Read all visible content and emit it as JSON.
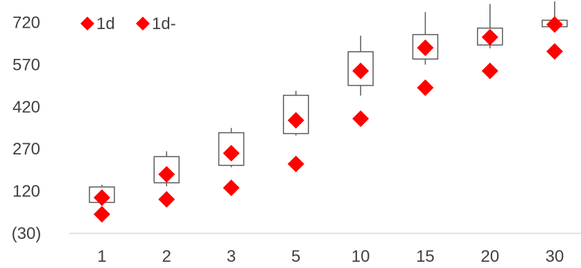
{
  "chart_data": {
    "type": "boxplot",
    "categories": [
      "1",
      "2",
      "3",
      "5",
      "10",
      "15",
      "20",
      "30"
    ],
    "y_ticks": [
      -30,
      120,
      270,
      420,
      570,
      720
    ],
    "y_tick_labels": [
      "(30)",
      "120",
      "270",
      "420",
      "570",
      "720"
    ],
    "ylim": [
      -30,
      800
    ],
    "grid": false,
    "legend_position": "top-left",
    "box_color": "#595959",
    "axis_color": "#d9d9d9",
    "series": [
      {
        "name": "1d",
        "color": "#ff0000",
        "values": [
          97,
          180,
          255,
          372,
          548,
          630,
          668,
          713
        ]
      },
      {
        "name": "1d-",
        "color": "#ff0000",
        "values": [
          38,
          91,
          132,
          217,
          378,
          488,
          548,
          617
        ]
      }
    ],
    "boxes": [
      {
        "whisker_low": 68,
        "q1": 80,
        "q3": 135,
        "whisker_high": 143
      },
      {
        "whisker_low": 138,
        "q1": 150,
        "q3": 243,
        "whisker_high": 262
      },
      {
        "whisker_low": 205,
        "q1": 212,
        "q3": 328,
        "whisker_high": 345
      },
      {
        "whisker_low": 318,
        "q1": 325,
        "q3": 461,
        "whisker_high": 477
      },
      {
        "whisker_low": 460,
        "q1": 496,
        "q3": 616,
        "whisker_high": 673
      },
      {
        "whisker_low": 570,
        "q1": 590,
        "q3": 677,
        "whisker_high": 757
      },
      {
        "whisker_low": 628,
        "q1": 640,
        "q3": 700,
        "whisker_high": 786
      },
      {
        "whisker_low": 700,
        "q1": 705,
        "q3": 728,
        "whisker_high": 795
      }
    ]
  }
}
